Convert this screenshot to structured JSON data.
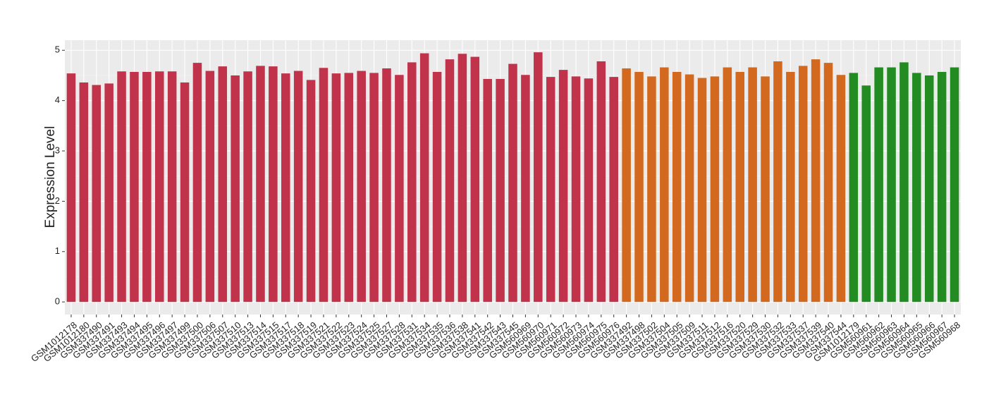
{
  "chart_data": {
    "type": "bar",
    "y_label": "Expression Level",
    "categories": [
      "GSM1012178",
      "GSM1012180",
      "GSM337490",
      "GSM337491",
      "GSM337493",
      "GSM337494",
      "GSM337495",
      "GSM337496",
      "GSM337497",
      "GSM337499",
      "GSM337500",
      "GSM337506",
      "GSM337507",
      "GSM337510",
      "GSM337513",
      "GSM337514",
      "GSM337515",
      "GSM337517",
      "GSM337518",
      "GSM337519",
      "GSM337521",
      "GSM337522",
      "GSM337523",
      "GSM337524",
      "GSM337525",
      "GSM337527",
      "GSM337528",
      "GSM337531",
      "GSM337534",
      "GSM337535",
      "GSM337536",
      "GSM337538",
      "GSM337541",
      "GSM337542",
      "GSM337543",
      "GSM337545",
      "GSM560969",
      "GSM560970",
      "GSM560971",
      "GSM560972",
      "GSM560973",
      "GSM560974",
      "GSM560975",
      "GSM560976",
      "GSM337492",
      "GSM337498",
      "GSM337502",
      "GSM337504",
      "GSM337505",
      "GSM337509",
      "GSM337511",
      "GSM337512",
      "GSM337516",
      "GSM337520",
      "GSM337529",
      "GSM337530",
      "GSM337532",
      "GSM337533",
      "GSM337537",
      "GSM337539",
      "GSM337540",
      "GSM337544",
      "GSM1012179",
      "GSM560961",
      "GSM560962",
      "GSM560963",
      "GSM560964",
      "GSM560965",
      "GSM560966",
      "GSM560967",
      "GSM560968"
    ],
    "values": [
      4.54,
      4.36,
      4.31,
      4.34,
      4.58,
      4.57,
      4.57,
      4.58,
      4.58,
      4.36,
      4.75,
      4.59,
      4.68,
      4.5,
      4.58,
      4.69,
      4.68,
      4.54,
      4.59,
      4.41,
      4.65,
      4.54,
      4.55,
      4.59,
      4.55,
      4.64,
      4.51,
      4.76,
      4.94,
      4.57,
      4.82,
      4.93,
      4.87,
      4.43,
      4.43,
      4.73,
      4.51,
      4.96,
      4.47,
      4.61,
      4.48,
      4.44,
      4.78,
      4.47,
      4.64,
      4.57,
      4.48,
      4.66,
      4.57,
      4.52,
      4.45,
      4.48,
      4.66,
      4.57,
      4.66,
      4.48,
      4.78,
      4.57,
      4.69,
      4.82,
      4.75,
      4.51,
      4.55,
      4.3,
      4.66,
      4.66,
      4.76,
      4.55,
      4.5,
      4.57,
      4.66
    ],
    "colors": [
      "#c0334a",
      "#c0334a",
      "#c0334a",
      "#c0334a",
      "#c0334a",
      "#c0334a",
      "#c0334a",
      "#c0334a",
      "#c0334a",
      "#c0334a",
      "#c0334a",
      "#c0334a",
      "#c0334a",
      "#c0334a",
      "#c0334a",
      "#c0334a",
      "#c0334a",
      "#c0334a",
      "#c0334a",
      "#c0334a",
      "#c0334a",
      "#c0334a",
      "#c0334a",
      "#c0334a",
      "#c0334a",
      "#c0334a",
      "#c0334a",
      "#c0334a",
      "#c0334a",
      "#c0334a",
      "#c0334a",
      "#c0334a",
      "#c0334a",
      "#c0334a",
      "#c0334a",
      "#c0334a",
      "#c0334a",
      "#c0334a",
      "#c0334a",
      "#c0334a",
      "#c0334a",
      "#c0334a",
      "#c0334a",
      "#c0334a",
      "#d2691e",
      "#d2691e",
      "#d2691e",
      "#d2691e",
      "#d2691e",
      "#d2691e",
      "#d2691e",
      "#d2691e",
      "#d2691e",
      "#d2691e",
      "#d2691e",
      "#d2691e",
      "#d2691e",
      "#d2691e",
      "#d2691e",
      "#d2691e",
      "#d2691e",
      "#d2691e",
      "#228b22",
      "#228b22",
      "#228b22",
      "#228b22",
      "#228b22",
      "#228b22",
      "#228b22",
      "#228b22",
      "#228b22"
    ],
    "ylim": [
      -0.25,
      5.2
    ],
    "yticks": [
      0,
      1,
      2,
      3,
      4,
      5
    ],
    "grid": true
  }
}
